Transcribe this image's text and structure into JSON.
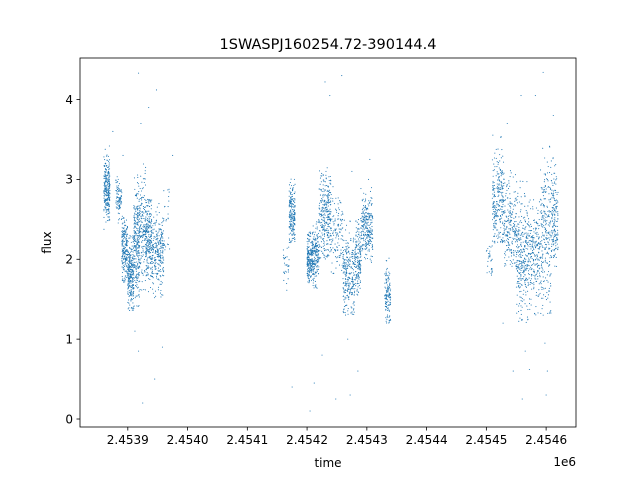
{
  "chart_data": {
    "type": "scatter",
    "title": "1SWASPJ160254.72-390144.4",
    "xlabel": "time",
    "ylabel": "flux",
    "x_offset_label": "1e6",
    "xlim": [
      2.45382,
      2.45465
    ],
    "ylim": [
      -0.1,
      4.52
    ],
    "x_ticks": [
      2.4539,
      2.454,
      2.4541,
      2.4542,
      2.4543,
      2.4544,
      2.4545,
      2.4546
    ],
    "x_tick_labels": [
      "2.4539",
      "2.4540",
      "2.4541",
      "2.4542",
      "2.4543",
      "2.4544",
      "2.4545",
      "2.4546"
    ],
    "y_ticks": [
      0,
      1,
      2,
      3,
      4
    ],
    "y_tick_labels": [
      "0",
      "1",
      "2",
      "3",
      "4"
    ],
    "grid": false,
    "legend": "none",
    "color": "#1f77b4",
    "series": [
      {
        "clusters": [
          {
            "x0": 2.45386,
            "x1": 2.45387,
            "ymin": 2.35,
            "ymax": 3.45,
            "center": 2.9,
            "sd": 0.18,
            "n": 260
          },
          {
            "x0": 2.45388,
            "x1": 2.45389,
            "ymin": 2.45,
            "ymax": 3.05,
            "center": 2.75,
            "sd": 0.12,
            "n": 90
          },
          {
            "x0": 2.45389,
            "x1": 2.4539,
            "ymin": 1.7,
            "ymax": 2.55,
            "center": 2.1,
            "sd": 0.2,
            "n": 200
          },
          {
            "x0": 2.4539,
            "x1": 2.45391,
            "ymin": 1.35,
            "ymax": 2.3,
            "center": 1.8,
            "sd": 0.22,
            "n": 260
          },
          {
            "x0": 2.45391,
            "x1": 2.45392,
            "ymin": 1.4,
            "ymax": 3.1,
            "center": 2.2,
            "sd": 0.35,
            "n": 260
          },
          {
            "x0": 2.45392,
            "x1": 2.45393,
            "ymin": 1.6,
            "ymax": 3.2,
            "center": 2.4,
            "sd": 0.35,
            "n": 150
          },
          {
            "x0": 2.45393,
            "x1": 2.45394,
            "ymin": 1.5,
            "ymax": 2.75,
            "center": 2.3,
            "sd": 0.25,
            "n": 220
          },
          {
            "x0": 2.45394,
            "x1": 2.45396,
            "ymin": 1.5,
            "ymax": 2.7,
            "center": 2.1,
            "sd": 0.22,
            "n": 260
          },
          {
            "x0": 2.45396,
            "x1": 2.45397,
            "ymin": 2.0,
            "ymax": 3.2,
            "center": 2.6,
            "sd": 0.3,
            "n": 25
          },
          {
            "x0": 2.45416,
            "x1": 2.45417,
            "ymin": 1.6,
            "ymax": 2.2,
            "center": 1.9,
            "sd": 0.15,
            "n": 30
          },
          {
            "x0": 2.45417,
            "x1": 2.45418,
            "ymin": 2.2,
            "ymax": 3.1,
            "center": 2.55,
            "sd": 0.2,
            "n": 200
          },
          {
            "x0": 2.4542,
            "x1": 2.45421,
            "ymin": 1.7,
            "ymax": 2.35,
            "center": 2.0,
            "sd": 0.15,
            "n": 220
          },
          {
            "x0": 2.45421,
            "x1": 2.45422,
            "ymin": 1.6,
            "ymax": 2.5,
            "center": 2.05,
            "sd": 0.2,
            "n": 160
          },
          {
            "x0": 2.45422,
            "x1": 2.45424,
            "ymin": 2.0,
            "ymax": 3.15,
            "center": 2.55,
            "sd": 0.28,
            "n": 300
          },
          {
            "x0": 2.45424,
            "x1": 2.45426,
            "ymin": 1.8,
            "ymax": 3.0,
            "center": 2.3,
            "sd": 0.25,
            "n": 120
          },
          {
            "x0": 2.45426,
            "x1": 2.45428,
            "ymin": 1.3,
            "ymax": 2.5,
            "center": 1.8,
            "sd": 0.25,
            "n": 260
          },
          {
            "x0": 2.45428,
            "x1": 2.45429,
            "ymin": 1.55,
            "ymax": 2.55,
            "center": 2.0,
            "sd": 0.2,
            "n": 160
          },
          {
            "x0": 2.45429,
            "x1": 2.45431,
            "ymin": 1.95,
            "ymax": 3.0,
            "center": 2.4,
            "sd": 0.2,
            "n": 260
          },
          {
            "x0": 2.45433,
            "x1": 2.45434,
            "ymin": 1.2,
            "ymax": 2.1,
            "center": 1.55,
            "sd": 0.18,
            "n": 130
          },
          {
            "x0": 2.4545,
            "x1": 2.45451,
            "ymin": 1.8,
            "ymax": 2.2,
            "center": 2.0,
            "sd": 0.12,
            "n": 30
          },
          {
            "x0": 2.45451,
            "x1": 2.45453,
            "ymin": 2.2,
            "ymax": 3.6,
            "center": 2.75,
            "sd": 0.3,
            "n": 260
          },
          {
            "x0": 2.45453,
            "x1": 2.45455,
            "ymin": 1.9,
            "ymax": 3.3,
            "center": 2.4,
            "sd": 0.28,
            "n": 200
          },
          {
            "x0": 2.45455,
            "x1": 2.45457,
            "ymin": 1.2,
            "ymax": 3.0,
            "center": 2.0,
            "sd": 0.35,
            "n": 300
          },
          {
            "x0": 2.45457,
            "x1": 2.45459,
            "ymin": 1.3,
            "ymax": 2.9,
            "center": 2.05,
            "sd": 0.3,
            "n": 220
          },
          {
            "x0": 2.45459,
            "x1": 2.45461,
            "ymin": 1.3,
            "ymax": 3.6,
            "center": 2.3,
            "sd": 0.45,
            "n": 260
          },
          {
            "x0": 2.45461,
            "x1": 2.45462,
            "ymin": 1.9,
            "ymax": 3.3,
            "center": 2.5,
            "sd": 0.3,
            "n": 140
          }
        ],
        "outliers": [
          [
            2.453918,
            4.33
          ],
          [
            2.453922,
            3.7
          ],
          [
            2.453935,
            3.9
          ],
          [
            2.453948,
            4.12
          ],
          [
            2.453925,
            0.2
          ],
          [
            2.453918,
            0.85
          ],
          [
            2.453945,
            0.5
          ],
          [
            2.453958,
            0.9
          ],
          [
            2.453875,
            3.6
          ],
          [
            2.453892,
            3.3
          ],
          [
            2.453975,
            3.3
          ],
          [
            2.453912,
            1.1
          ],
          [
            2.454175,
            0.4
          ],
          [
            2.454205,
            0.1
          ],
          [
            2.454225,
            0.8
          ],
          [
            2.45423,
            4.22
          ],
          [
            2.454238,
            4.05
          ],
          [
            2.454258,
            4.3
          ],
          [
            2.454248,
            0.25
          ],
          [
            2.454272,
            0.3
          ],
          [
            2.454285,
            0.6
          ],
          [
            2.454268,
            1.0
          ],
          [
            2.454305,
            3.25
          ],
          [
            2.454275,
            3.1
          ],
          [
            2.454212,
            0.45
          ],
          [
            2.454535,
            3.7
          ],
          [
            2.454545,
            0.6
          ],
          [
            2.454558,
            4.05
          ],
          [
            2.454565,
            0.85
          ],
          [
            2.454582,
            4.05
          ],
          [
            2.454595,
            4.34
          ],
          [
            2.454598,
            0.95
          ],
          [
            2.4546,
            0.3
          ],
          [
            2.454572,
            0.62
          ],
          [
            2.454612,
            3.8
          ],
          [
            2.45456,
            0.25
          ],
          [
            2.454528,
            1.2
          ],
          [
            2.454602,
            0.6
          ]
        ]
      }
    ]
  }
}
